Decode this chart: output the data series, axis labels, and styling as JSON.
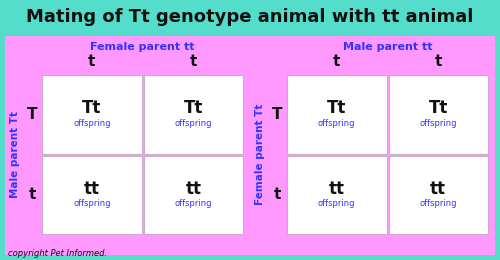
{
  "title": "Mating of Tt genotype animal with tt animal",
  "title_bg": "#55ddcc",
  "border_color": "#55ddcc",
  "bg_color": "#ff99ff",
  "cell_color": "#ffffff",
  "cell_bg": "#ffccff",
  "title_fontsize": 13,
  "blue_color": "#3333ff",
  "black_color": "#111111",
  "left_table": {
    "header_label": "Female parent tt",
    "side_label": "Male parent Tt",
    "col_headers": [
      "t",
      "t"
    ],
    "row_headers": [
      "T",
      "t"
    ],
    "cells": [
      [
        "Tt",
        "Tt"
      ],
      [
        "tt",
        "tt"
      ]
    ]
  },
  "right_table": {
    "header_label": "Male parent tt",
    "side_label": "Female parent Tt",
    "col_headers": [
      "t",
      "t"
    ],
    "row_headers": [
      "T",
      "t"
    ],
    "cells": [
      [
        "Tt",
        "Tt"
      ],
      [
        "tt",
        "tt"
      ]
    ]
  },
  "copyright": "copyright Pet Informed.",
  "offspring_label": "offspring",
  "fig_width": 5.0,
  "fig_height": 2.6,
  "dpi": 100
}
